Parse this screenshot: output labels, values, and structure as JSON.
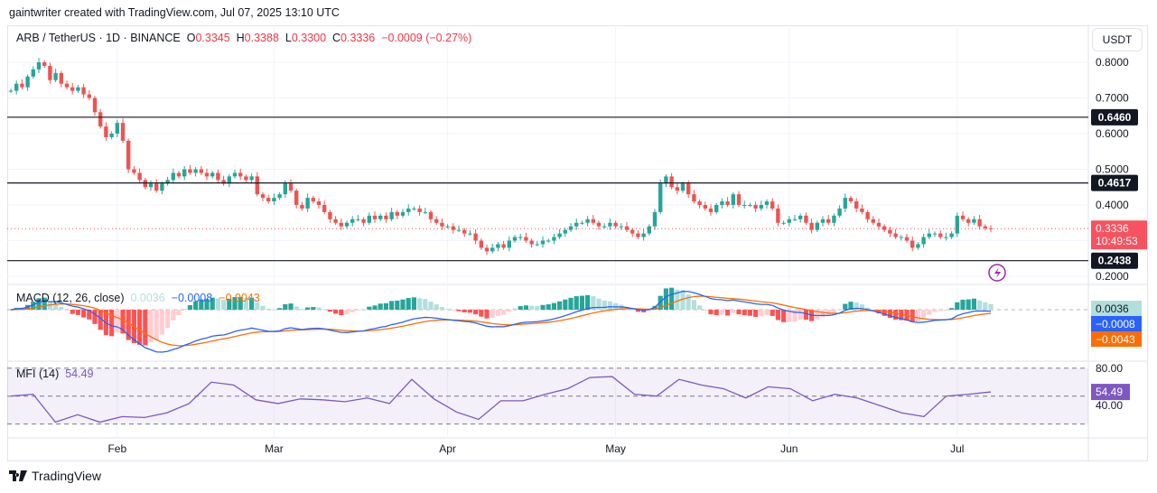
{
  "credit": "gaintwriter created with TradingView.com, Jul 07, 2025 13:10 UTC",
  "legend": {
    "symbol": "ARB / TetherUS · 1D · BINANCE",
    "o_label": "O",
    "o": "0.3345",
    "h_label": "H",
    "h": "0.3388",
    "l_label": "L",
    "l": "0.3300",
    "c_label": "C",
    "c": "0.3336",
    "change": "−0.0009 (−0.27%)"
  },
  "currency_button": "USDT",
  "countdown": "10:49:53",
  "footer_brand": "TradingView",
  "colors": {
    "up": "#26a69a",
    "down": "#ef5350",
    "macd": "#2962ff",
    "signal": "#ff6d00",
    "mfi": "#7e57c2",
    "level_line": "#131722"
  },
  "chart_data": {
    "type": "candlestick",
    "first_date": "2025-01-13",
    "last_date": "2025-07-07",
    "price_ticks": [
      "0.8000",
      "0.7000",
      "0.6000",
      "0.5000",
      "0.4000",
      "0.2000"
    ],
    "ylim": [
      0.2,
      0.85
    ],
    "x_ticks": [
      {
        "label": "Feb",
        "date": "2025-02-01"
      },
      {
        "label": "Mar",
        "date": "2025-03-01"
      },
      {
        "label": "Apr",
        "date": "2025-04-01"
      },
      {
        "label": "May",
        "date": "2025-05-01"
      },
      {
        "label": "Jun",
        "date": "2025-06-01"
      },
      {
        "label": "Jul",
        "date": "2025-07-01"
      }
    ],
    "levels": [
      "0.6460",
      "0.4617",
      "0.2438"
    ],
    "last_price": "0.3336",
    "closes": [
      0.72,
      0.74,
      0.73,
      0.76,
      0.78,
      0.8,
      0.79,
      0.75,
      0.77,
      0.74,
      0.73,
      0.72,
      0.73,
      0.71,
      0.7,
      0.66,
      0.62,
      0.59,
      0.6,
      0.63,
      0.58,
      0.5,
      0.49,
      0.47,
      0.45,
      0.46,
      0.44,
      0.46,
      0.47,
      0.49,
      0.48,
      0.5,
      0.49,
      0.5,
      0.49,
      0.48,
      0.49,
      0.47,
      0.46,
      0.48,
      0.49,
      0.48,
      0.47,
      0.48,
      0.43,
      0.42,
      0.41,
      0.42,
      0.43,
      0.46,
      0.44,
      0.4,
      0.39,
      0.42,
      0.41,
      0.4,
      0.38,
      0.36,
      0.35,
      0.34,
      0.35,
      0.36,
      0.36,
      0.35,
      0.37,
      0.36,
      0.37,
      0.36,
      0.38,
      0.37,
      0.38,
      0.39,
      0.39,
      0.38,
      0.38,
      0.36,
      0.35,
      0.34,
      0.34,
      0.33,
      0.33,
      0.32,
      0.32,
      0.3,
      0.28,
      0.27,
      0.28,
      0.29,
      0.28,
      0.3,
      0.31,
      0.31,
      0.3,
      0.29,
      0.29,
      0.3,
      0.3,
      0.31,
      0.32,
      0.33,
      0.34,
      0.35,
      0.35,
      0.36,
      0.35,
      0.34,
      0.34,
      0.35,
      0.34,
      0.34,
      0.33,
      0.32,
      0.31,
      0.32,
      0.34,
      0.38,
      0.46,
      0.48,
      0.45,
      0.44,
      0.46,
      0.43,
      0.41,
      0.4,
      0.39,
      0.38,
      0.4,
      0.41,
      0.4,
      0.43,
      0.4,
      0.4,
      0.4,
      0.39,
      0.4,
      0.41,
      0.39,
      0.35,
      0.35,
      0.36,
      0.36,
      0.37,
      0.35,
      0.33,
      0.35,
      0.36,
      0.35,
      0.37,
      0.39,
      0.42,
      0.41,
      0.39,
      0.38,
      0.36,
      0.35,
      0.34,
      0.33,
      0.32,
      0.31,
      0.31,
      0.3,
      0.28,
      0.29,
      0.31,
      0.32,
      0.32,
      0.31,
      0.31,
      0.32,
      0.37,
      0.36,
      0.35,
      0.36,
      0.34,
      0.3345,
      0.3336
    ],
    "macd": {
      "title": "MACD",
      "params": "(12, 26, close)",
      "histogram": "0.0036",
      "macd": "−0.0008",
      "signal": "−0.0043"
    },
    "mfi": {
      "title": "MFI",
      "params": "(14)",
      "value": "54.49",
      "ticks": [
        "80.00",
        "40.00"
      ],
      "bands": [
        80,
        50,
        20
      ],
      "values": [
        50,
        52,
        22,
        30,
        22,
        28,
        27,
        32,
        42,
        65,
        62,
        46,
        42,
        47,
        46,
        44,
        48,
        42,
        68,
        47,
        33,
        25,
        45,
        45,
        52,
        58,
        70,
        71,
        52,
        50,
        68,
        62,
        58,
        48,
        60,
        58,
        45,
        52,
        48,
        40,
        32,
        28,
        50,
        52,
        54.49
      ]
    }
  }
}
